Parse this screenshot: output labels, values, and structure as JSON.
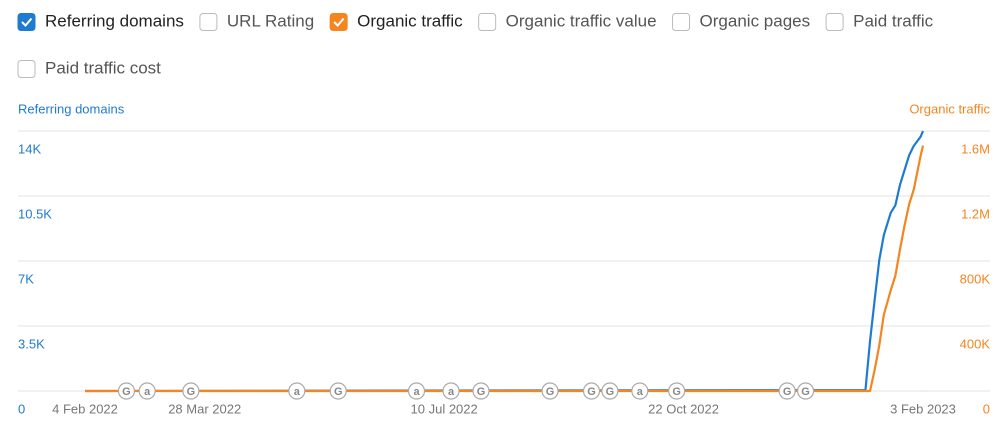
{
  "options": [
    {
      "label": "Referring domains",
      "checked": true,
      "color": "#1f7bd1"
    },
    {
      "label": "URL Rating",
      "checked": false
    },
    {
      "label": "Organic traffic",
      "checked": true,
      "color": "#f5851f"
    },
    {
      "label": "Organic traffic value",
      "checked": false
    },
    {
      "label": "Organic pages",
      "checked": false
    },
    {
      "label": "Paid traffic",
      "checked": false
    },
    {
      "label": "Paid traffic cost",
      "checked": false
    }
  ],
  "chart_data": {
    "type": "line",
    "ylabel": "Referring domains",
    "y2label": "Organic traffic",
    "x": [
      "2022-02-04",
      "2023-01-09",
      "2023-01-11",
      "2023-01-13",
      "2023-01-15",
      "2023-01-17",
      "2023-01-20",
      "2023-01-22",
      "2023-01-24",
      "2023-01-26",
      "2023-01-28",
      "2023-01-30",
      "2023-02-02",
      "2023-02-03"
    ],
    "series": [
      {
        "name": "Referring domains",
        "color": "#1f7bd1",
        "values": [
          0,
          50,
          2700,
          4900,
          7050,
          8400,
          9600,
          10000,
          11100,
          11900,
          12700,
          13200,
          13700,
          14000
        ]
      },
      {
        "name": "Organic traffic",
        "color": "#f5851f",
        "axis": "y2",
        "values": [
          0,
          0,
          0,
          130000,
          280000,
          470000,
          620000,
          710000,
          870000,
          1020000,
          1150000,
          1240000,
          1450000,
          1510000
        ]
      }
    ],
    "xlim": [
      "2022-02-04",
      "2023-02-03"
    ],
    "xticks": [
      {
        "value": "2022-02-04",
        "label": "4 Feb 2022"
      },
      {
        "value": "2022-03-28",
        "label": "28 Mar 2022"
      },
      {
        "value": "2022-07-10",
        "label": "10 Jul 2022"
      },
      {
        "value": "2022-10-22",
        "label": "22 Oct 2022"
      },
      {
        "value": "2023-02-03",
        "label": "3 Feb 2023"
      }
    ],
    "ylim": [
      0,
      14000
    ],
    "yticks": [
      0,
      {
        "value": 3500,
        "label": "3.5K"
      },
      {
        "value": 7000,
        "label": "7K"
      },
      {
        "value": 10500,
        "label": "10.5K"
      },
      {
        "value": 14000,
        "label": "14K"
      }
    ],
    "y2lim": [
      0,
      1600000
    ],
    "y2ticks": [
      0,
      {
        "value": 400000,
        "label": "400K"
      },
      {
        "value": 800000,
        "label": "800K"
      },
      {
        "value": 1200000,
        "label": "1.2M"
      },
      {
        "value": 1600000,
        "label": "1.6M"
      }
    ],
    "grid": true,
    "annotations": [
      {
        "date": "2022-02-22",
        "label": "G"
      },
      {
        "date": "2022-03-03",
        "label": "a"
      },
      {
        "date": "2022-03-22",
        "label": "G"
      },
      {
        "date": "2022-05-07",
        "label": "a"
      },
      {
        "date": "2022-05-25",
        "label": "G"
      },
      {
        "date": "2022-06-28",
        "label": "a"
      },
      {
        "date": "2022-07-13",
        "label": "a"
      },
      {
        "date": "2022-07-26",
        "label": "G"
      },
      {
        "date": "2022-08-25",
        "label": "G"
      },
      {
        "date": "2022-09-12",
        "label": "G"
      },
      {
        "date": "2022-09-20",
        "label": "G"
      },
      {
        "date": "2022-10-03",
        "label": "a"
      },
      {
        "date": "2022-10-19",
        "label": "G"
      },
      {
        "date": "2022-12-06",
        "label": "G"
      },
      {
        "date": "2022-12-14",
        "label": "G"
      }
    ]
  }
}
